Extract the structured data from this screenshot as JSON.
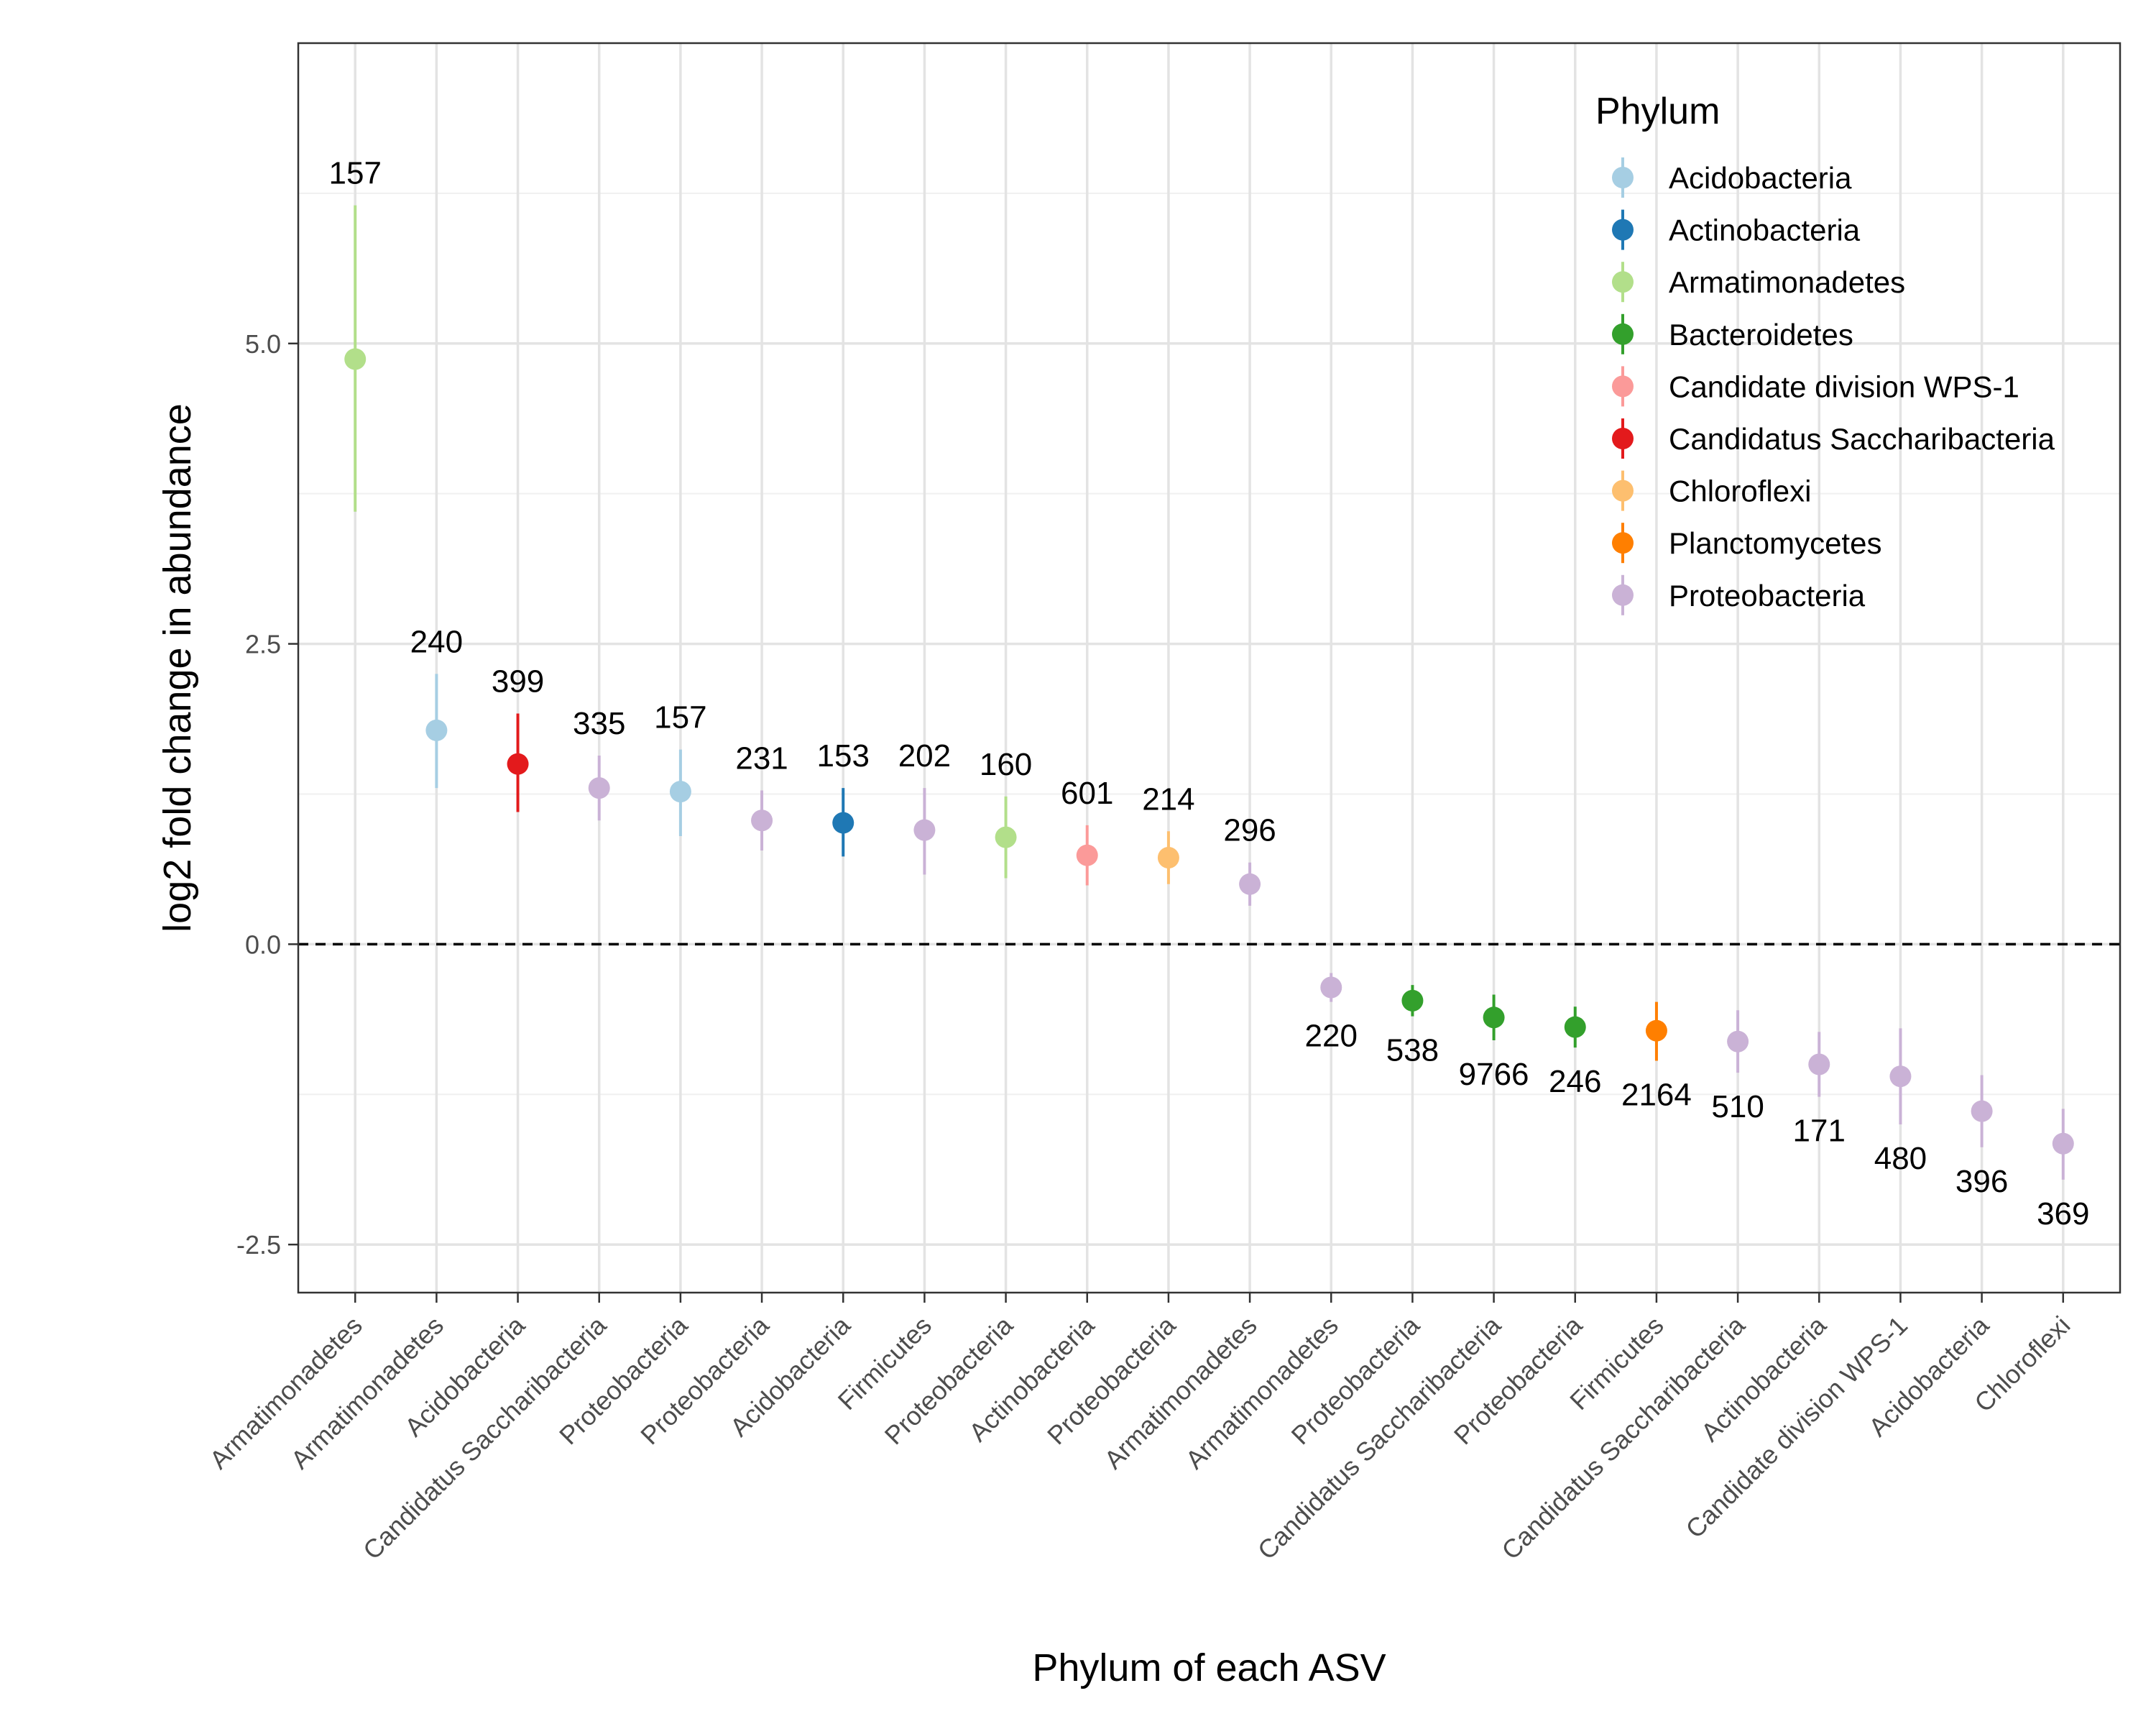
{
  "chart_data": {
    "type": "scatter",
    "xlabel": "Phylum of each ASV",
    "ylabel": "log2 fold change in abundance",
    "ylim": [
      -2.9,
      7.5
    ],
    "yticks": [
      -2.5,
      0.0,
      2.5,
      5.0
    ],
    "ytick_labels": [
      "-2.5",
      "0.0",
      "2.5",
      "5.0"
    ],
    "reference_line": 0,
    "grid": true,
    "legend": {
      "title": "Phylum",
      "position": "top-right",
      "entries": [
        {
          "name": "Acidobacteria",
          "color": "#a6cee3"
        },
        {
          "name": "Actinobacteria",
          "color": "#1f78b4"
        },
        {
          "name": "Armatimonadetes",
          "color": "#b2df8a"
        },
        {
          "name": "Bacteroidetes",
          "color": "#33a02c"
        },
        {
          "name": "Candidate division WPS-1",
          "color": "#fb9a99"
        },
        {
          "name": "Candidatus Saccharibacteria",
          "color": "#e31a1c"
        },
        {
          "name": "Chloroflexi",
          "color": "#fdbf6f"
        },
        {
          "name": "Planctomycetes",
          "color": "#ff7f00"
        },
        {
          "name": "Proteobacteria",
          "color": "#cab2d6"
        }
      ]
    },
    "points": [
      {
        "category": "Armatimonadetes",
        "phylum": "Armatimonadetes",
        "y": 4.87,
        "ymin": 3.6,
        "ymax": 6.15,
        "label": "157"
      },
      {
        "category": "Armatimonadetes",
        "phylum": "Acidobacteria",
        "y": 1.78,
        "ymin": 1.3,
        "ymax": 2.25,
        "label": "240"
      },
      {
        "category": "Acidobacteria",
        "phylum": "Candidatus Saccharibacteria",
        "y": 1.5,
        "ymin": 1.1,
        "ymax": 1.92,
        "label": "399"
      },
      {
        "category": "Candidatus Saccharibacteria",
        "phylum": "Proteobacteria",
        "y": 1.3,
        "ymin": 1.03,
        "ymax": 1.57,
        "label": "335"
      },
      {
        "category": "Proteobacteria",
        "phylum": "Acidobacteria",
        "y": 1.27,
        "ymin": 0.9,
        "ymax": 1.62,
        "label": "157"
      },
      {
        "category": "Proteobacteria",
        "phylum": "Proteobacteria",
        "y": 1.03,
        "ymin": 0.78,
        "ymax": 1.28,
        "label": "231"
      },
      {
        "category": "Acidobacteria",
        "phylum": "Actinobacteria",
        "y": 1.01,
        "ymin": 0.73,
        "ymax": 1.3,
        "label": "153"
      },
      {
        "category": "Firmicutes",
        "phylum": "Proteobacteria",
        "y": 0.95,
        "ymin": 0.58,
        "ymax": 1.3,
        "label": "202"
      },
      {
        "category": "Proteobacteria",
        "phylum": "Armatimonadetes",
        "y": 0.89,
        "ymin": 0.55,
        "ymax": 1.23,
        "label": "160"
      },
      {
        "category": "Actinobacteria",
        "phylum": "Candidate division WPS-1",
        "y": 0.74,
        "ymin": 0.49,
        "ymax": 0.99,
        "label": "601"
      },
      {
        "category": "Proteobacteria",
        "phylum": "Chloroflexi",
        "y": 0.72,
        "ymin": 0.5,
        "ymax": 0.94,
        "label": "214"
      },
      {
        "category": "Armatimonadetes",
        "phylum": "Proteobacteria",
        "y": 0.5,
        "ymin": 0.32,
        "ymax": 0.68,
        "label": "296"
      },
      {
        "category": "Armatimonadetes",
        "phylum": "Proteobacteria",
        "y": -0.36,
        "ymin": -0.48,
        "ymax": -0.24,
        "label": "220"
      },
      {
        "category": "Proteobacteria",
        "phylum": "Bacteroidetes",
        "y": -0.47,
        "ymin": -0.6,
        "ymax": -0.34,
        "label": "538"
      },
      {
        "category": "Candidatus Saccharibacteria",
        "phylum": "Bacteroidetes",
        "y": -0.61,
        "ymin": -0.8,
        "ymax": -0.42,
        "label": "9766"
      },
      {
        "category": "Proteobacteria",
        "phylum": "Bacteroidetes",
        "y": -0.69,
        "ymin": -0.86,
        "ymax": -0.52,
        "label": "246"
      },
      {
        "category": "Firmicutes",
        "phylum": "Planctomycetes",
        "y": -0.72,
        "ymin": -0.97,
        "ymax": -0.48,
        "label": "2164"
      },
      {
        "category": "Candidatus Saccharibacteria",
        "phylum": "Proteobacteria",
        "y": -0.81,
        "ymin": -1.07,
        "ymax": -0.55,
        "label": "510"
      },
      {
        "category": "Actinobacteria",
        "phylum": "Proteobacteria",
        "y": -1.0,
        "ymin": -1.27,
        "ymax": -0.73,
        "label": "171"
      },
      {
        "category": "Candidate division WPS-1",
        "phylum": "Proteobacteria",
        "y": -1.1,
        "ymin": -1.5,
        "ymax": -0.7,
        "label": "480"
      },
      {
        "category": "Acidobacteria",
        "phylum": "Proteobacteria",
        "y": -1.39,
        "ymin": -1.69,
        "ymax": -1.09,
        "label": "396"
      },
      {
        "category": "Chloroflexi",
        "phylum": "Proteobacteria",
        "y": -1.66,
        "ymin": -1.96,
        "ymax": -1.37,
        "label": "369"
      }
    ]
  }
}
